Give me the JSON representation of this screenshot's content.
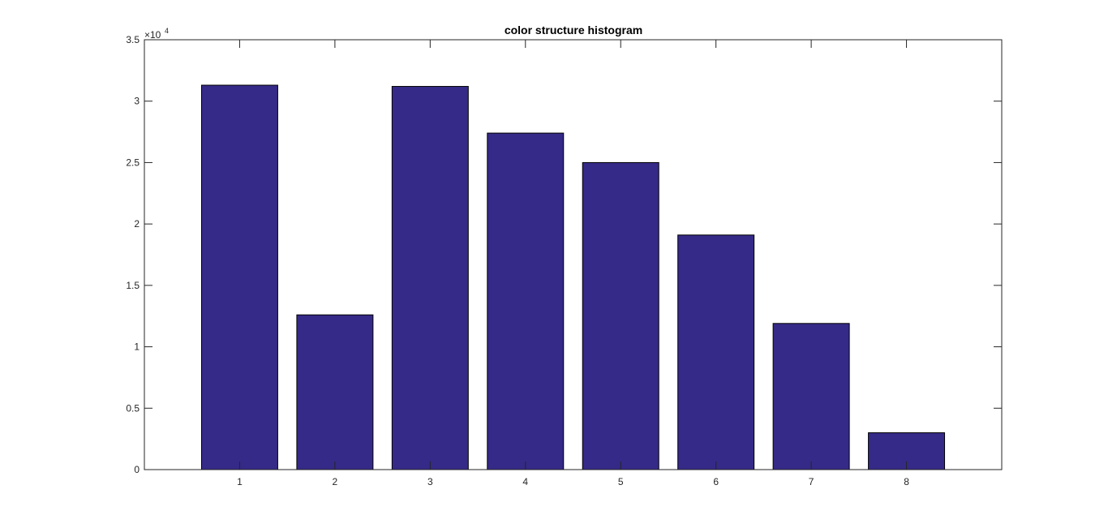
{
  "chart_data": {
    "type": "bar",
    "title": "color structure histogram",
    "xlabel": "",
    "ylabel": "",
    "categories": [
      "1",
      "2",
      "3",
      "4",
      "5",
      "6",
      "7",
      "8"
    ],
    "values": [
      31300,
      12600,
      31200,
      27400,
      25000,
      19100,
      11900,
      3000
    ],
    "xlim": [
      0,
      9
    ],
    "ylim": [
      0,
      35000
    ],
    "y_ticks": [
      0,
      5000,
      10000,
      15000,
      20000,
      25000,
      30000,
      35000
    ],
    "y_tick_labels": [
      "0",
      "0.5",
      "1",
      "1.5",
      "2",
      "2.5",
      "3",
      "3.5"
    ],
    "y_exponent_base": "×10",
    "y_exponent_power": "4",
    "grid": false,
    "bar_color": "#352a87",
    "bar_edge_color": "#000000"
  }
}
